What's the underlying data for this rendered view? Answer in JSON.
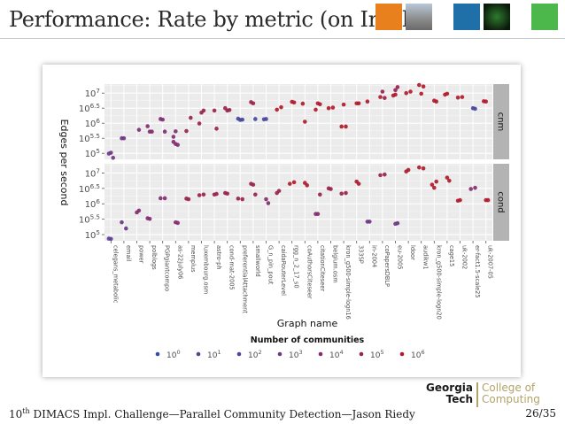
{
  "slide": {
    "title": "Performance: Rate by metric (on Intel)",
    "footer_prefix": "10",
    "footer_sup": "th",
    "footer_rest": " DIMACS Impl. Challenge—Parallel Community Detection—Jason Riedy",
    "page": "26/35",
    "logo_line1": "Georgia",
    "logo_line2": "Tech",
    "logo_right1": "College of",
    "logo_right2": "Computing",
    "colors": {
      "thumb1": "#e8801e",
      "thumb2": "#8a8a8a",
      "thumb3": "#1f6fa8",
      "thumb4": "#2f7a2f",
      "thumb5": "#4cb84c"
    }
  },
  "chart_data": {
    "type": "scatter",
    "xlabel": "Graph name",
    "ylabel": "Edges per second",
    "y_log10": true,
    "ylim_log10": [
      4.8,
      7.3
    ],
    "yticks": [
      {
        "v": 5,
        "base": "10",
        "exp": "5"
      },
      {
        "v": 5.5,
        "base": "10",
        "exp": "5.5"
      },
      {
        "v": 6,
        "base": "10",
        "exp": "6"
      },
      {
        "v": 6.5,
        "base": "10",
        "exp": "6.5"
      },
      {
        "v": 7,
        "base": "10",
        "exp": "7"
      }
    ],
    "grid": true,
    "panels": [
      "cnm",
      "cond"
    ],
    "categories": [
      "celegans_metabolic",
      "email",
      "power",
      "polblogs",
      "PGPgiantcompo",
      "as-22july06",
      "memplus",
      "luxembourg.osm",
      "astro-ph",
      "cond-mat-2005",
      "preferentialAttachment",
      "smallworld",
      "G_n_pin_pout",
      "caidaRouterLevel",
      "rgg_n_2_17_s0",
      "coAuthorsCiteseer",
      "citationCiteseer",
      "belgium.osm",
      "kron_g500-simple-logn16",
      "333SP",
      "in-2004",
      "coPapersDBLP",
      "eu-2005",
      "ldoor",
      "audikw1",
      "kron_g500-simple-logn20",
      "cage15",
      "uk-2002",
      "er-fact1.5-scale25",
      "uk-2007-05"
    ],
    "legend": {
      "title": "Number of communities",
      "position": "bottom",
      "entries": [
        {
          "base": "10",
          "exp": "0",
          "color": "#2e4ea8"
        },
        {
          "base": "10",
          "exp": "1",
          "color": "#47479c"
        },
        {
          "base": "10",
          "exp": "2",
          "color": "#5a3f92"
        },
        {
          "base": "10",
          "exp": "3",
          "color": "#6d3686"
        },
        {
          "base": "10",
          "exp": "4",
          "color": "#822c70"
        },
        {
          "base": "10",
          "exp": "5",
          "color": "#98224f"
        },
        {
          "base": "10",
          "exp": "6",
          "color": "#b01a2a"
        }
      ]
    },
    "series": [
      {
        "name": "cnm",
        "points": [
          [
            0,
            4.99,
            3
          ],
          [
            0,
            5.02,
            3
          ],
          [
            0,
            4.85,
            3
          ],
          [
            1,
            5.5,
            3
          ],
          [
            1,
            5.5,
            3
          ],
          [
            2,
            5.78,
            4
          ],
          [
            3,
            5.9,
            4
          ],
          [
            3,
            5.72,
            4
          ],
          [
            3,
            5.72,
            4
          ],
          [
            4,
            6.14,
            4
          ],
          [
            4,
            6.12,
            4
          ],
          [
            4,
            5.72,
            4
          ],
          [
            5,
            5.38,
            4
          ],
          [
            5,
            5.31,
            4
          ],
          [
            5,
            5.28,
            4
          ],
          [
            5,
            5.55,
            4
          ],
          [
            5,
            5.73,
            4
          ],
          [
            6,
            6.18,
            5
          ],
          [
            6,
            5.74,
            5
          ],
          [
            7,
            6.35,
            5
          ],
          [
            7,
            6.42,
            5
          ],
          [
            7,
            5.99,
            5
          ],
          [
            8,
            6.42,
            5
          ],
          [
            8,
            5.82,
            5
          ],
          [
            9,
            6.5,
            5
          ],
          [
            9,
            6.42,
            5
          ],
          [
            9,
            6.44,
            5
          ],
          [
            10,
            6.15,
            1
          ],
          [
            10,
            6.11,
            1
          ],
          [
            10,
            6.12,
            1
          ],
          [
            11,
            6.7,
            5
          ],
          [
            11,
            6.66,
            5
          ],
          [
            11,
            6.14,
            1
          ],
          [
            12,
            6.13,
            1
          ],
          [
            12,
            6.14,
            1
          ],
          [
            13,
            6.53,
            6
          ],
          [
            13,
            6.45,
            6
          ],
          [
            14,
            6.71,
            6
          ],
          [
            14,
            6.69,
            6
          ],
          [
            15,
            6.65,
            6
          ],
          [
            15,
            6.05,
            6
          ],
          [
            16,
            6.63,
            6
          ],
          [
            16,
            6.45,
            6
          ],
          [
            16,
            6.66,
            6
          ],
          [
            17,
            6.52,
            6
          ],
          [
            17,
            6.5,
            6
          ],
          [
            18,
            6.62,
            6
          ],
          [
            18,
            5.89,
            6
          ],
          [
            18,
            5.89,
            6
          ],
          [
            19,
            6.66,
            6
          ],
          [
            19,
            6.66,
            6
          ],
          [
            20,
            6.72,
            6
          ],
          [
            21,
            7.05,
            5
          ],
          [
            21,
            6.84,
            5
          ],
          [
            21,
            6.87,
            6
          ],
          [
            22,
            7.1,
            5
          ],
          [
            22,
            7.2,
            5
          ],
          [
            22,
            6.92,
            6
          ],
          [
            22,
            6.95,
            6
          ],
          [
            23,
            7.05,
            6
          ],
          [
            23,
            7.0,
            6
          ],
          [
            24,
            6.98,
            6
          ],
          [
            24,
            7.22,
            6
          ],
          [
            24,
            7.27,
            6
          ],
          [
            25,
            6.75,
            6
          ],
          [
            25,
            6.72,
            6
          ],
          [
            26,
            6.95,
            6
          ],
          [
            26,
            6.98,
            6
          ],
          [
            27,
            6.87,
            6
          ],
          [
            27,
            6.85,
            6
          ],
          [
            28,
            6.5,
            1
          ],
          [
            28,
            6.48,
            1
          ],
          [
            29,
            6.73,
            6
          ],
          [
            29,
            6.72,
            6
          ]
        ]
      },
      {
        "name": "cond",
        "points": [
          [
            0,
            4.87,
            2
          ],
          [
            0,
            4.86,
            2
          ],
          [
            1,
            5.2,
            3
          ],
          [
            1,
            5.4,
            3
          ],
          [
            2,
            5.72,
            4
          ],
          [
            2,
            5.78,
            4
          ],
          [
            3,
            5.53,
            4
          ],
          [
            3,
            5.51,
            4
          ],
          [
            4,
            6.18,
            4
          ],
          [
            4,
            6.18,
            4
          ],
          [
            5,
            5.4,
            4
          ],
          [
            5,
            5.38,
            4
          ],
          [
            6,
            6.17,
            5
          ],
          [
            6,
            6.15,
            5
          ],
          [
            7,
            6.3,
            5
          ],
          [
            7,
            6.28,
            5
          ],
          [
            8,
            6.3,
            5
          ],
          [
            8,
            6.32,
            5
          ],
          [
            9,
            6.35,
            5
          ],
          [
            9,
            6.33,
            5
          ],
          [
            10,
            6.15,
            5
          ],
          [
            10,
            6.17,
            5
          ],
          [
            11,
            6.62,
            5
          ],
          [
            11,
            6.3,
            5
          ],
          [
            11,
            6.65,
            5
          ],
          [
            12,
            6.15,
            4
          ],
          [
            12,
            6.02,
            4
          ],
          [
            13,
            6.35,
            5
          ],
          [
            13,
            6.42,
            5
          ],
          [
            14,
            6.7,
            6
          ],
          [
            14,
            6.65,
            6
          ],
          [
            15,
            6.68,
            6
          ],
          [
            15,
            6.6,
            6
          ],
          [
            16,
            5.67,
            4
          ],
          [
            16,
            5.67,
            4
          ],
          [
            16,
            6.3,
            5
          ],
          [
            17,
            6.5,
            5
          ],
          [
            17,
            6.48,
            5
          ],
          [
            18,
            6.35,
            5
          ],
          [
            18,
            6.33,
            5
          ],
          [
            19,
            6.72,
            6
          ],
          [
            19,
            6.65,
            6
          ],
          [
            20,
            5.42,
            3
          ],
          [
            20,
            5.42,
            3
          ],
          [
            21,
            6.95,
            5
          ],
          [
            21,
            6.93,
            5
          ],
          [
            22,
            5.35,
            3
          ],
          [
            22,
            5.37,
            3
          ],
          [
            23,
            7.05,
            6
          ],
          [
            23,
            7.1,
            6
          ],
          [
            24,
            7.15,
            6
          ],
          [
            24,
            7.18,
            6
          ],
          [
            25,
            6.52,
            6
          ],
          [
            25,
            6.72,
            6
          ],
          [
            25,
            6.62,
            6
          ],
          [
            26,
            6.85,
            6
          ],
          [
            26,
            6.75,
            6
          ],
          [
            27,
            6.1,
            6
          ],
          [
            27,
            6.12,
            6
          ],
          [
            28,
            6.52,
            4
          ],
          [
            28,
            6.48,
            4
          ],
          [
            29,
            6.12,
            6
          ],
          [
            29,
            6.12,
            6
          ]
        ]
      }
    ]
  }
}
